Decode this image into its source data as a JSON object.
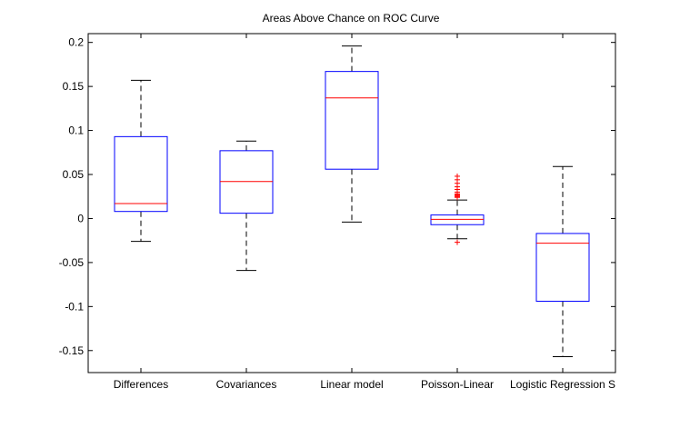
{
  "chart_data": {
    "type": "boxplot",
    "title": "Areas Above Chance on ROC Curve",
    "xlabel": "",
    "ylabel": "",
    "categories": [
      "Differences",
      "Covariances",
      "Linear model",
      "Poisson-Linear",
      "Logistic Regression S"
    ],
    "ylim": [
      -0.175,
      0.21
    ],
    "yticks": [
      -0.15,
      -0.1,
      -0.05,
      0,
      0.05,
      0.1,
      0.15,
      0.2
    ],
    "ytick_labels": [
      "-0.15",
      "-0.1",
      "-0.05",
      "0",
      "0.05",
      "0.1",
      "0.15",
      "0.2"
    ],
    "grid": false,
    "boxes": [
      {
        "category": "Differences",
        "whisker_low": -0.026,
        "q1": 0.008,
        "median": 0.017,
        "q3": 0.093,
        "whisker_high": 0.157,
        "outliers": []
      },
      {
        "category": "Covariances",
        "whisker_low": -0.059,
        "q1": 0.006,
        "median": 0.042,
        "q3": 0.077,
        "whisker_high": 0.088,
        "outliers": []
      },
      {
        "category": "Linear model",
        "whisker_low": -0.004,
        "q1": 0.056,
        "median": 0.137,
        "q3": 0.167,
        "whisker_high": 0.196,
        "outliers": []
      },
      {
        "category": "Poisson-Linear",
        "whisker_low": -0.023,
        "q1": -0.007,
        "median": -0.001,
        "q3": 0.004,
        "whisker_high": 0.021,
        "outliers": [
          0.024,
          0.025,
          0.026,
          0.027,
          0.028,
          0.03,
          0.033,
          0.036,
          0.04,
          0.044,
          0.048,
          -0.027
        ]
      },
      {
        "category": "Logistic Regression S",
        "whisker_low": -0.157,
        "q1": -0.094,
        "median": -0.028,
        "q3": -0.017,
        "whisker_high": 0.059,
        "outliers": []
      }
    ],
    "colors": {
      "box": "#0000ff",
      "median": "#ff0000",
      "whisker": "#000000",
      "outlier": "#ff0000",
      "axes": "#000000",
      "background": "#ffffff"
    }
  }
}
